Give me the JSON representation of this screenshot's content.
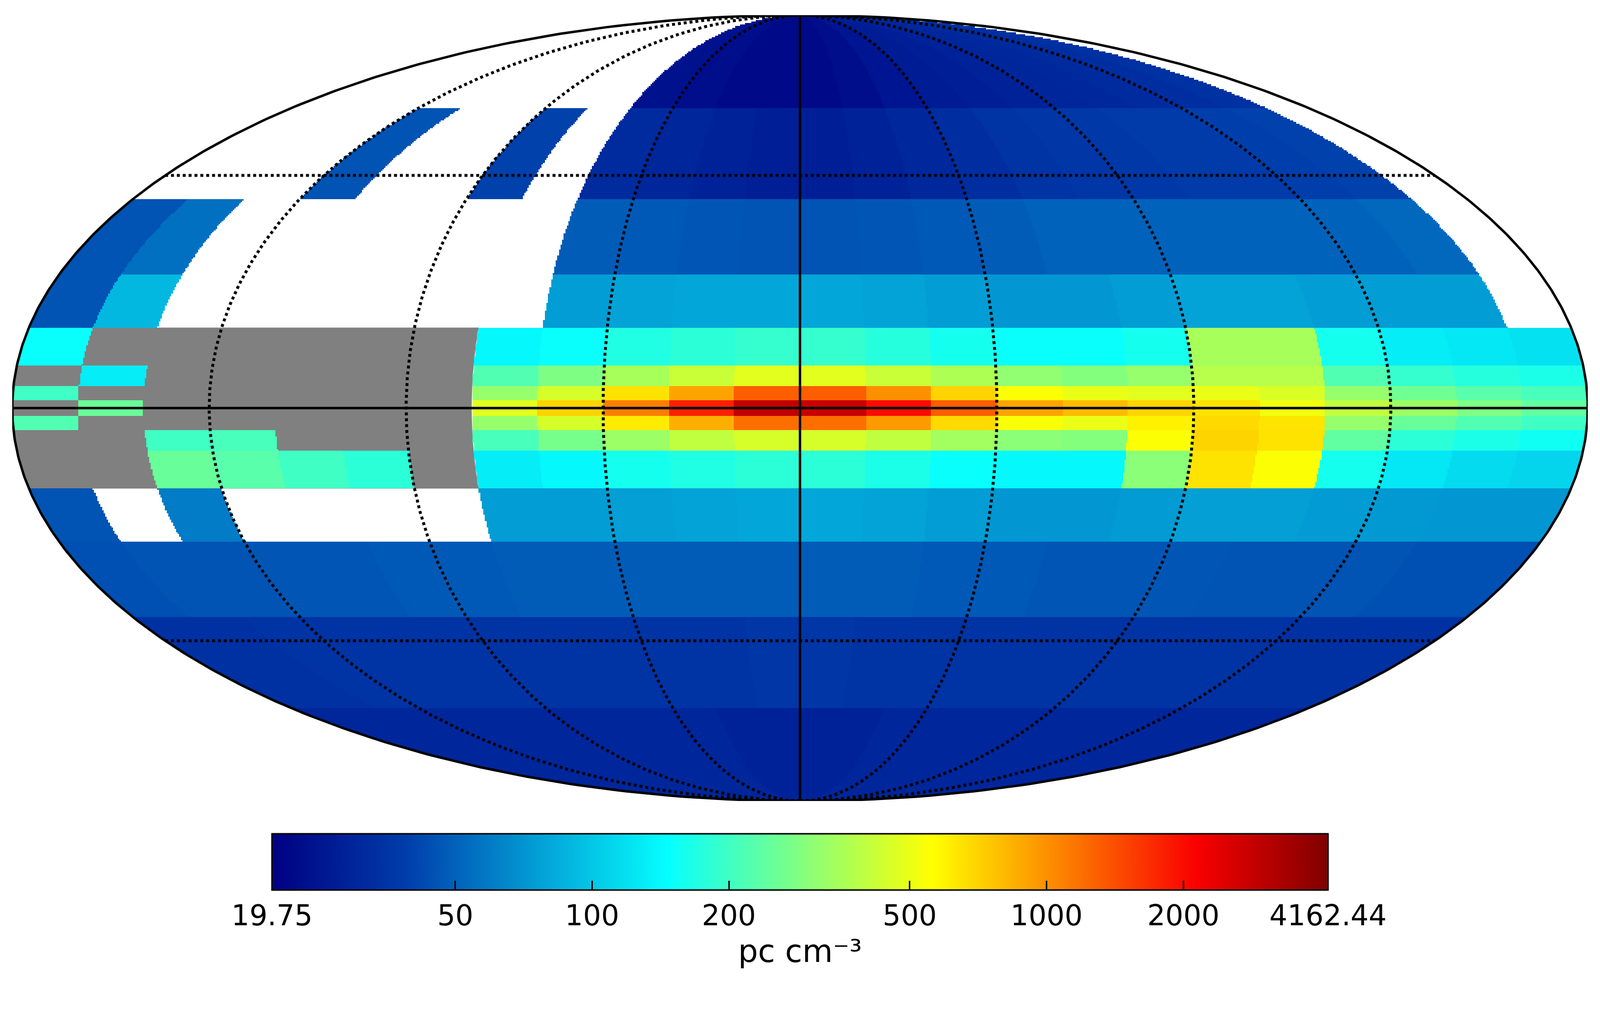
{
  "chart_data": {
    "type": "heatmap",
    "xlim": [
      180,
      -180
    ],
    "ylim": [
      -90,
      90
    ],
    "xticks": [
      -135,
      -90,
      -45,
      0,
      45,
      90,
      135
    ],
    "yticks": [
      -45,
      0,
      45
    ],
    "grid": true,
    "tick_labels": false,
    "log": true,
    "l_edges": [
      180,
      165,
      150,
      135,
      120,
      105,
      90,
      75,
      60,
      45,
      30,
      15,
      0,
      -15,
      -30,
      -45,
      -60,
      -75,
      -90,
      -105,
      -120,
      -135,
      -150,
      -165,
      -180
    ],
    "b_edges": [
      90,
      60,
      40,
      25,
      15,
      8,
      4,
      1.5,
      -1.5,
      -4,
      -8,
      -15,
      -25,
      -40,
      -60,
      -90
    ],
    "values": [
      [
        null,
        null,
        null,
        null,
        null,
        null,
        null,
        null,
        24,
        23,
        22,
        22,
        22,
        23,
        25,
        27,
        28,
        29,
        30,
        31,
        32,
        33,
        34,
        null
      ],
      [
        null,
        null,
        null,
        45,
        null,
        null,
        40,
        null,
        32,
        30,
        29,
        28,
        28,
        29,
        31,
        33,
        35,
        36,
        37,
        38,
        38,
        39,
        40,
        null
      ],
      [
        45,
        55,
        null,
        null,
        null,
        null,
        null,
        null,
        48,
        47,
        46,
        45,
        45,
        46,
        47,
        48,
        50,
        50,
        50,
        50,
        50,
        50,
        52,
        null
      ],
      [
        45,
        90,
        null,
        null,
        null,
        null,
        null,
        null,
        75,
        78,
        80,
        80,
        80,
        78,
        75,
        72,
        72,
        75,
        78,
        78,
        75,
        75,
        75,
        null
      ],
      [
        150,
        null,
        null,
        null,
        null,
        null,
        null,
        140,
        150,
        170,
        180,
        190,
        190,
        175,
        160,
        150,
        150,
        160,
        350,
        350,
        160,
        130,
        125,
        120
      ],
      [
        null,
        130,
        null,
        null,
        null,
        null,
        null,
        220,
        280,
        350,
        420,
        480,
        480,
        420,
        360,
        310,
        290,
        320,
        380,
        380,
        220,
        190,
        175,
        165
      ],
      [
        200,
        null,
        null,
        null,
        null,
        null,
        null,
        320,
        450,
        650,
        900,
        1300,
        1300,
        1000,
        700,
        550,
        500,
        480,
        500,
        460,
        320,
        260,
        230,
        210
      ],
      [
        null,
        250,
        null,
        null,
        null,
        null,
        null,
        480,
        700,
        1100,
        1800,
        2900,
        2800,
        2000,
        1300,
        900,
        800,
        700,
        650,
        520,
        400,
        330,
        280,
        240
      ],
      [
        220,
        null,
        null,
        null,
        null,
        null,
        null,
        320,
        450,
        620,
        850,
        1200,
        1200,
        950,
        680,
        540,
        500,
        600,
        680,
        640,
        320,
        250,
        220,
        200
      ],
      [
        null,
        null,
        200,
        210,
        null,
        null,
        null,
        210,
        270,
        330,
        400,
        450,
        450,
        400,
        340,
        300,
        290,
        550,
        700,
        650,
        240,
        180,
        165,
        155
      ],
      [
        null,
        null,
        250,
        230,
        200,
        180,
        null,
        130,
        140,
        160,
        170,
        180,
        180,
        165,
        150,
        140,
        140,
        300,
        650,
        550,
        160,
        125,
        115,
        110
      ],
      [
        45,
        null,
        60,
        null,
        null,
        null,
        null,
        75,
        75,
        76,
        78,
        80,
        80,
        78,
        75,
        72,
        72,
        74,
        76,
        76,
        74,
        73,
        72,
        72
      ],
      [
        44,
        45,
        45,
        46,
        46,
        47,
        47,
        48,
        48,
        48,
        48,
        48,
        48,
        48,
        47,
        47,
        46,
        46,
        46,
        45,
        45,
        45,
        44,
        44
      ],
      [
        34,
        34,
        35,
        35,
        35,
        35,
        35,
        35,
        35,
        35,
        35,
        36,
        36,
        35,
        35,
        35,
        35,
        35,
        35,
        35,
        35,
        34,
        34,
        34
      ],
      [
        30,
        30,
        30,
        30,
        30,
        30,
        30,
        30,
        30,
        30,
        29,
        29,
        29,
        29,
        30,
        30,
        30,
        30,
        30,
        30,
        30,
        30,
        30,
        30
      ]
    ],
    "masked_region": {
      "l": [
        75,
        180
      ],
      "b": [
        -15,
        15
      ],
      "color": "#808080"
    },
    "colorbar": {
      "range": [
        19.75,
        4162.44
      ],
      "ticks": [
        19.75,
        50,
        100,
        200,
        500,
        1000,
        2000,
        4162.44
      ],
      "title": "pc cm⁻³"
    }
  }
}
